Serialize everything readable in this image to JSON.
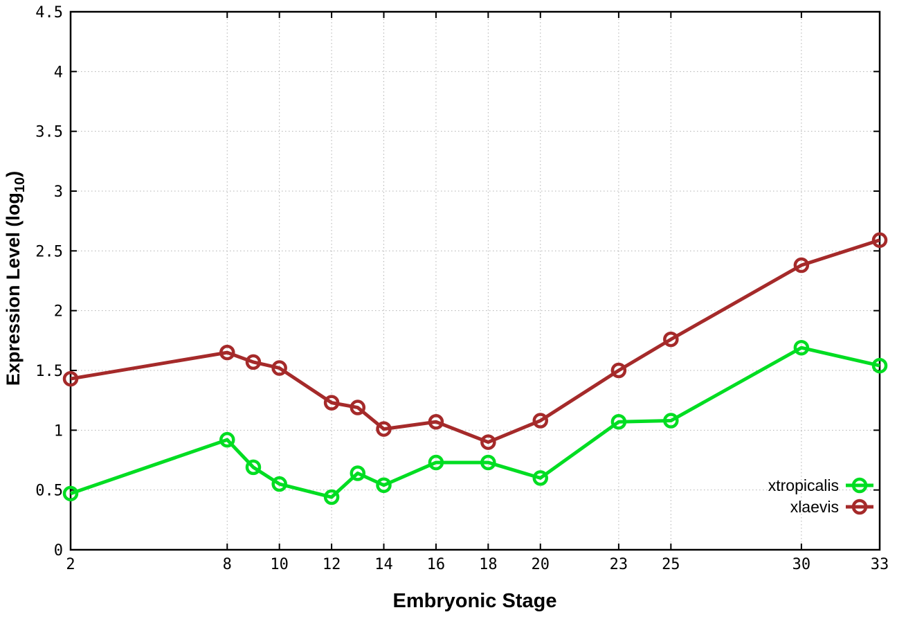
{
  "page": {
    "background": "#ffffff",
    "text_color": "#000000"
  },
  "chart_data": {
    "type": "line",
    "title": "",
    "xlabel": "Embryonic Stage",
    "ylabel": {
      "pre": "Expression Level (log",
      "sub": "10",
      "post": ")"
    },
    "x": [
      2,
      8,
      9,
      10,
      12,
      13,
      14,
      16,
      18,
      20,
      23,
      25,
      30,
      33
    ],
    "series": [
      {
        "name": "xtropicalis",
        "color": "#00dd22",
        "values": [
          0.47,
          0.92,
          0.69,
          0.55,
          0.44,
          0.64,
          0.54,
          0.73,
          0.73,
          0.6,
          1.07,
          1.08,
          1.69,
          1.54
        ]
      },
      {
        "name": "xlaevis",
        "color": "#a52a2a",
        "values": [
          1.43,
          1.65,
          1.57,
          1.52,
          1.23,
          1.19,
          1.01,
          1.07,
          0.9,
          1.08,
          1.5,
          1.76,
          2.38,
          2.59
        ]
      }
    ],
    "xticks": {
      "values": [
        2,
        8,
        10,
        12,
        14,
        16,
        18,
        20,
        23,
        25,
        30,
        33
      ],
      "labels": [
        "2",
        "8",
        "10",
        "12",
        "14",
        "16",
        "18",
        "20",
        "23",
        "25",
        "30",
        "33"
      ]
    },
    "yticks": {
      "values": [
        0,
        0.5,
        1,
        1.5,
        2,
        2.5,
        3,
        3.5,
        4,
        4.5
      ],
      "labels": [
        "0",
        "0.5",
        "1",
        "1.5",
        "2",
        "2.5",
        "3",
        "3.5",
        "4",
        "4.5"
      ]
    },
    "xlim": [
      2,
      33
    ],
    "ylim": [
      0,
      4.5
    ],
    "grid": true,
    "legend_position": "inside-bottom-right",
    "legend_entries": [
      "xtropicalis",
      "xlaevis"
    ],
    "axis_color": "#000000",
    "grid_color": "#b0b0b0"
  }
}
